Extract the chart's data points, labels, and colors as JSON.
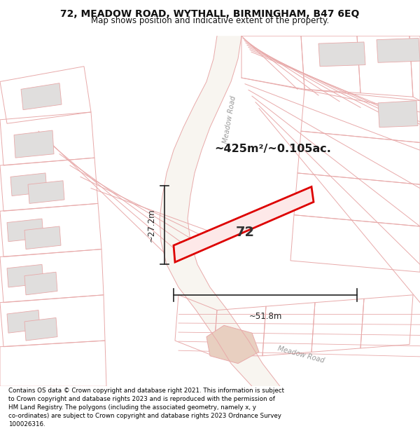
{
  "title_line1": "72, MEADOW ROAD, WYTHALL, BIRMINGHAM, B47 6EQ",
  "title_line2": "Map shows position and indicative extent of the property.",
  "footer_text": "Contains OS data © Crown copyright and database right 2021. This information is subject to Crown copyright and database rights 2023 and is reproduced with the permission of HM Land Registry. The polygons (including the associated geometry, namely x, y co-ordinates) are subject to Crown copyright and database rights 2023 Ordnance Survey 100026316.",
  "area_label": "~425m²/~0.105ac.",
  "plot_number": "72",
  "dim_width": "~51.8m",
  "dim_height": "~27.2m",
  "map_bg": "#ffffff",
  "plot_fill": "none",
  "plot_edge": "#dd0000",
  "building_fill": "#e0dedd",
  "parcel_line": "#e8aaaa",
  "road_color": "#ffffff",
  "road_label_color": "#aaaaaa",
  "dim_color": "#222222",
  "title_color": "#111111"
}
